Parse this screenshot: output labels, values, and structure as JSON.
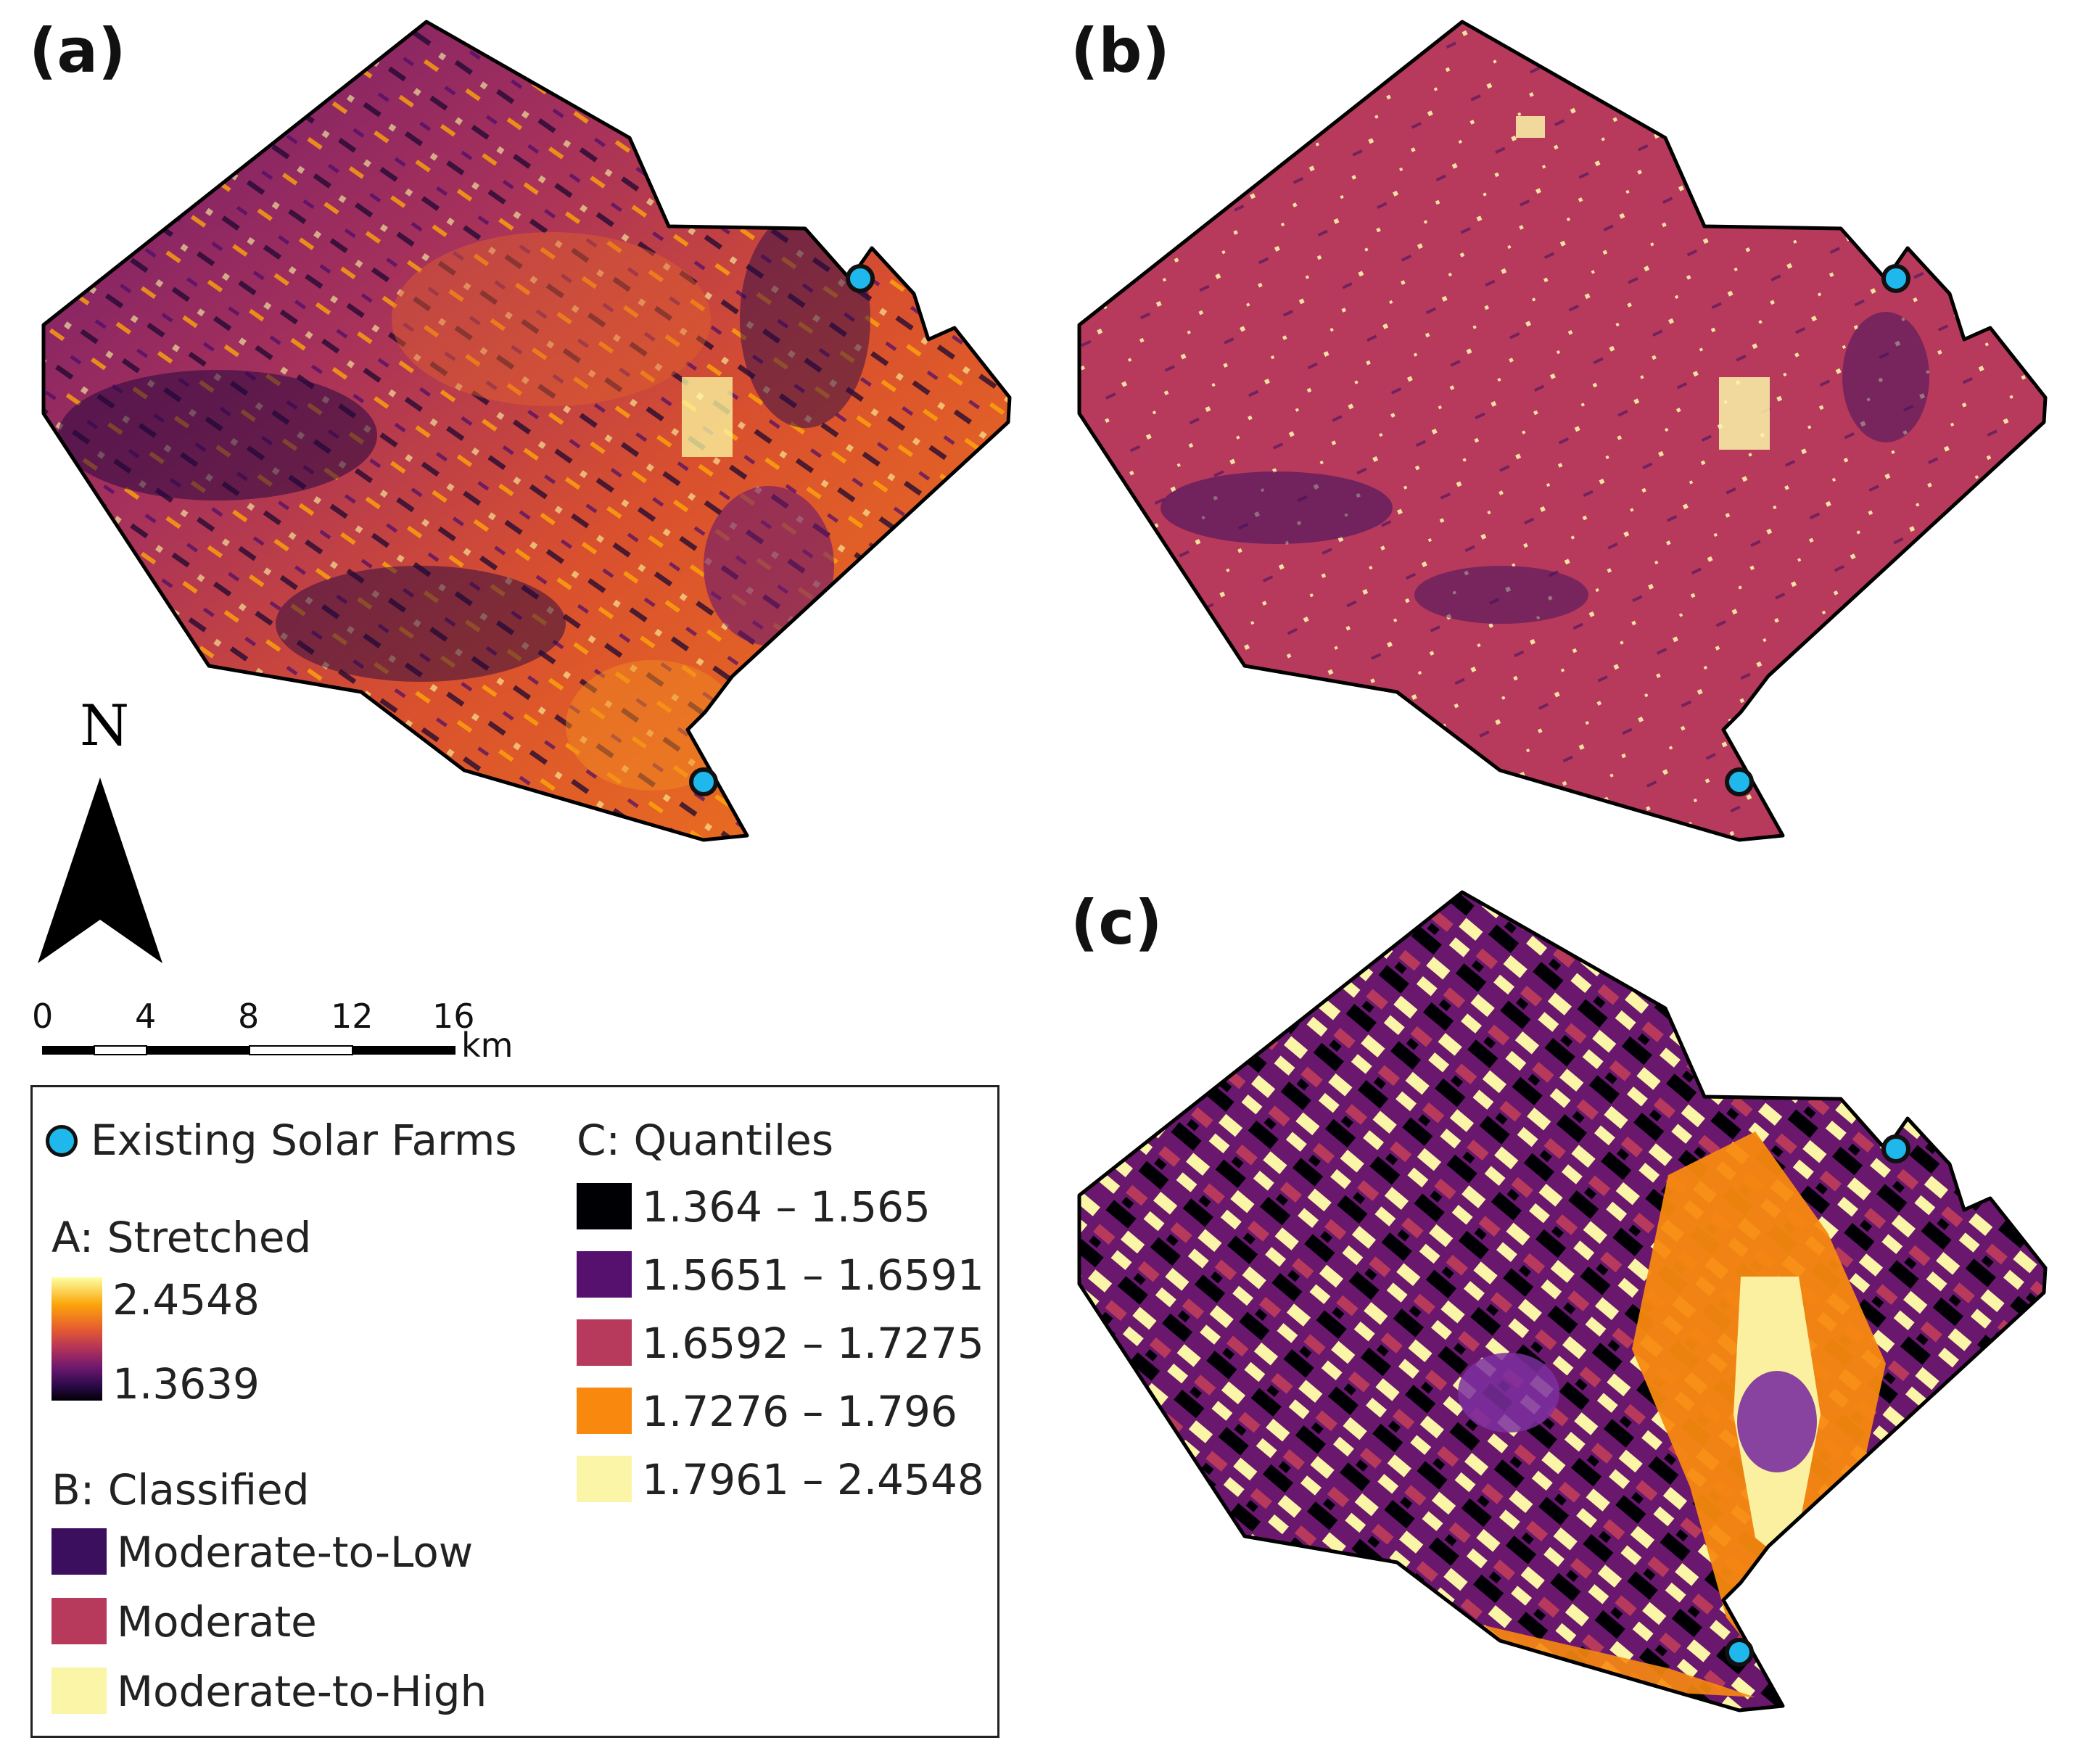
{
  "panels": {
    "a": "(a)",
    "b": "(b)",
    "c": "(c)"
  },
  "north_arrow": {
    "letter": "N"
  },
  "scale_bar": {
    "ticks": [
      "0",
      "4",
      "8",
      "12",
      "16"
    ],
    "unit": "km"
  },
  "legend": {
    "existing_farms": "Existing Solar Farms",
    "stretched": {
      "title": "A: Stretched",
      "max": "2.4548",
      "min": "1.3639"
    },
    "classified": {
      "title": "B: Classified",
      "items": [
        {
          "label": "Moderate-to-Low",
          "color": "#3b0f5e"
        },
        {
          "label": "Moderate",
          "color": "#b73a5c"
        },
        {
          "label": "Moderate-to-High",
          "color": "#fbf5a8"
        }
      ]
    },
    "quantiles": {
      "title": "C: Quantiles",
      "items": [
        {
          "label": "1.364 – 1.565",
          "color": "#000004"
        },
        {
          "label": "1.5651 – 1.6591",
          "color": "#56106e"
        },
        {
          "label": "1.6592 – 1.7275",
          "color": "#b73a5c"
        },
        {
          "label": "1.7276 – 1.796",
          "color": "#f8890e"
        },
        {
          "label": "1.7961 – 2.4548",
          "color": "#fbf5a8"
        }
      ]
    }
  },
  "colors": {
    "farm_marker": "#1fb8ec",
    "outline": "#000000"
  }
}
